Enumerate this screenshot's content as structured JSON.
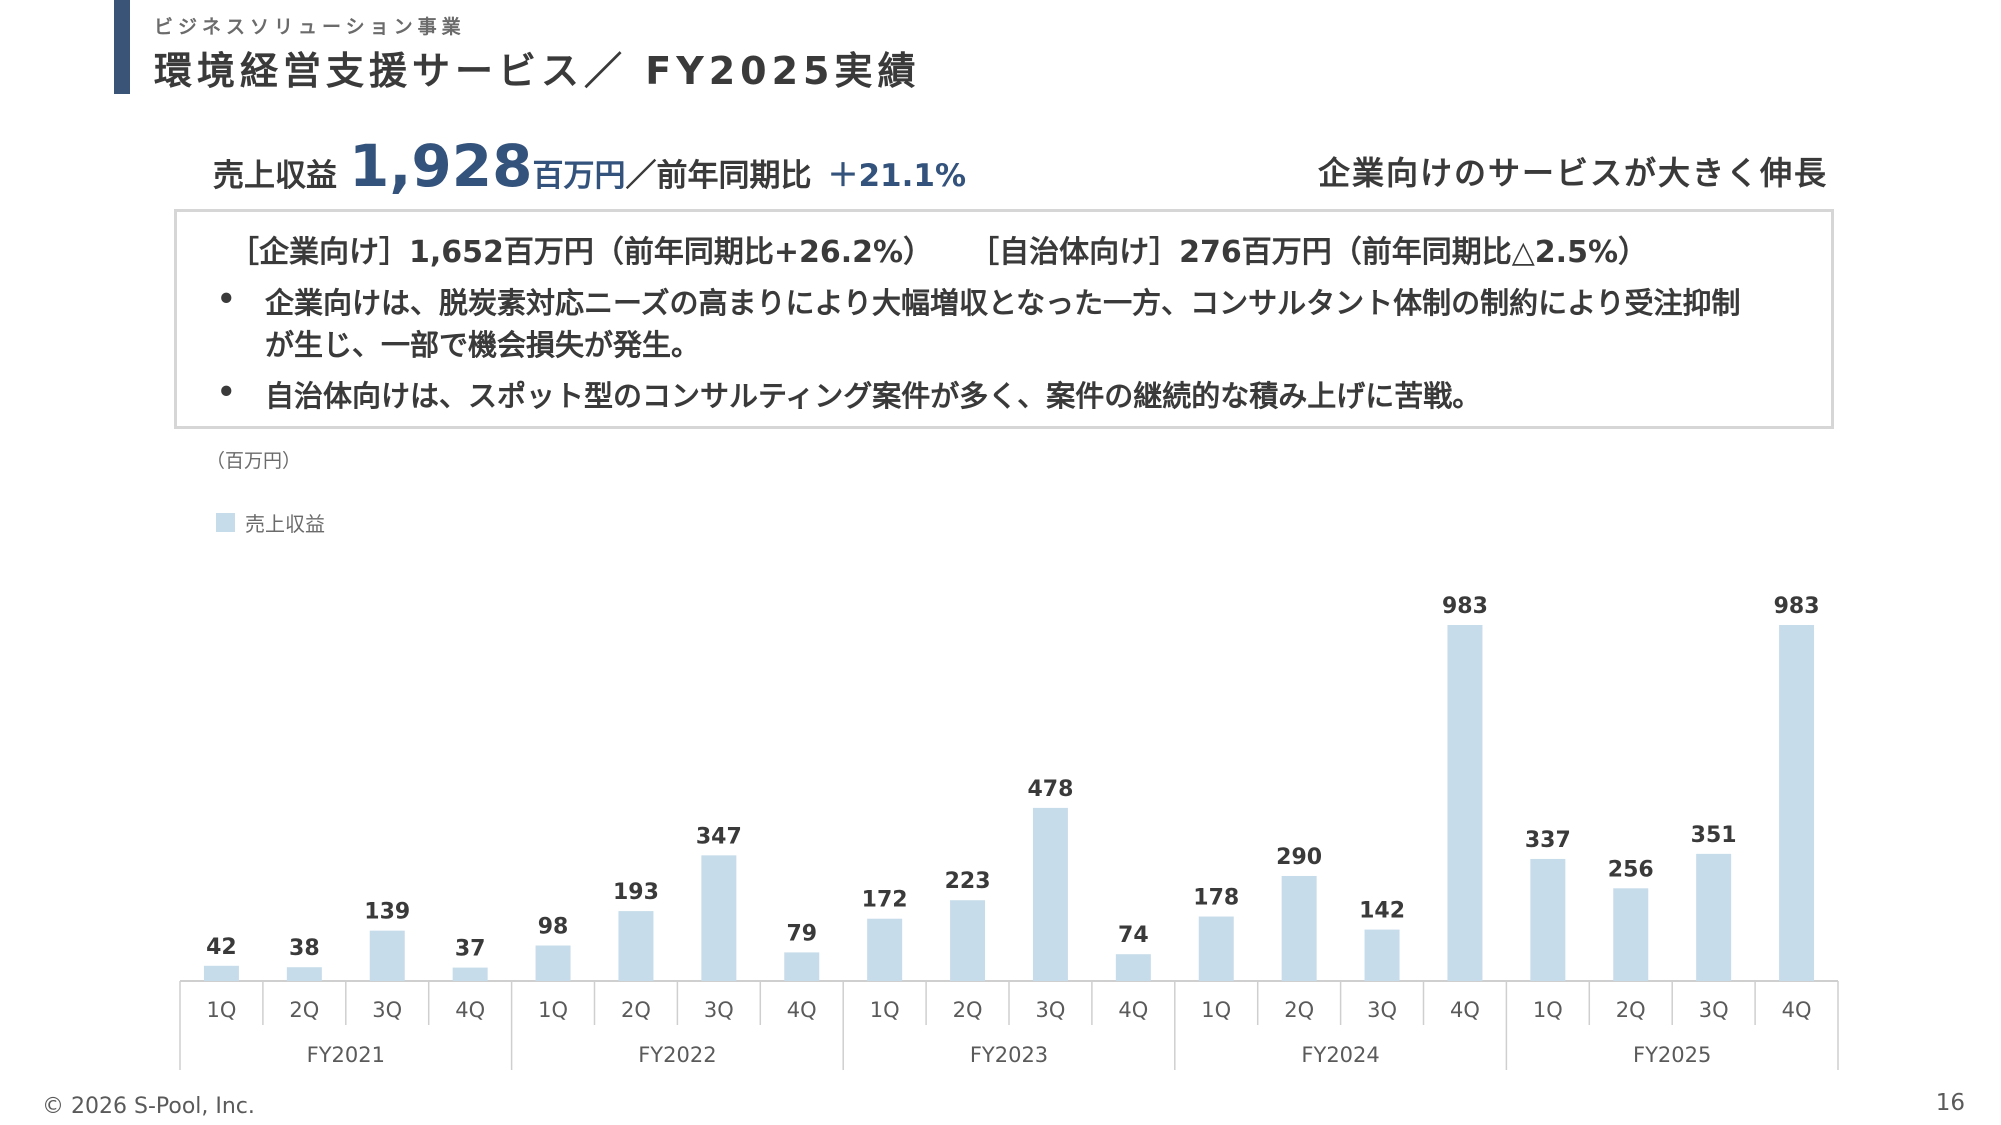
{
  "header": {
    "subtitle": "ビジネスソリューション事業",
    "title": "環境経営支援サービス／ FY2025実績"
  },
  "kpi": {
    "label": "売上収益",
    "value": "1,928",
    "unit": "百万円",
    "separator": "／前年同期比",
    "growth": "＋21.1%"
  },
  "tagline": "企業向けのサービスが大きく伸長",
  "box": {
    "corporate": "［企業向け］1,652百万円（前年同期比+26.2%）",
    "municipal": "［自治体向け］276百万円（前年同期比△2.5%）",
    "bullets": [
      "企業向けは、脱炭素対応ニーズの高まりにより大幅増収となった一方、コンサルタント体制の制約により受注抑制が生じ、一部で機会損失が発生。",
      "自治体向けは、スポット型のコンサルティング案件が多く、案件の継続的な積み上げに苦戦。"
    ],
    "bullet_symbol": "•"
  },
  "chart_data": {
    "type": "bar",
    "unit_label": "（百万円）",
    "legend": [
      "売上収益"
    ],
    "quarters": [
      "1Q",
      "2Q",
      "3Q",
      "4Q",
      "1Q",
      "2Q",
      "3Q",
      "4Q",
      "1Q",
      "2Q",
      "3Q",
      "4Q",
      "1Q",
      "2Q",
      "3Q",
      "4Q",
      "1Q",
      "2Q",
      "3Q",
      "4Q"
    ],
    "fiscal_years": [
      "FY2021",
      "FY2022",
      "FY2023",
      "FY2024",
      "FY2025"
    ],
    "series": [
      {
        "name": "売上収益",
        "values": [
          42,
          38,
          139,
          37,
          98,
          193,
          347,
          79,
          172,
          223,
          478,
          74,
          178,
          290,
          142,
          983,
          337,
          256,
          351,
          983
        ]
      }
    ],
    "ylim": [
      0,
      1000
    ],
    "bar_color": "#c7dcea"
  },
  "footer": {
    "copyright": "© 2026 S-Pool, Inc.",
    "page": "16"
  }
}
